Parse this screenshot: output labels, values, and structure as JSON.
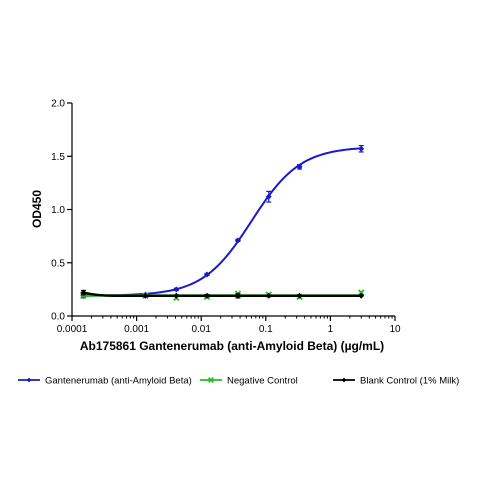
{
  "chart_data": {
    "type": "line",
    "title": "",
    "xlabel": "Ab175861 Gantenerumab (anti-Amyloid Beta) (µg/mL)",
    "ylabel": "OD450",
    "xscale": "log",
    "xlim": [
      0.0001,
      10
    ],
    "ylim": [
      0,
      2.0
    ],
    "x_ticks": [
      0.0001,
      0.001,
      0.01,
      0.1,
      1,
      10
    ],
    "x_tick_labels": [
      "0.0001",
      "0.001",
      "0.01",
      "0.1",
      "1",
      "10"
    ],
    "y_ticks": [
      0,
      0.5,
      1.0,
      1.5,
      2.0
    ],
    "y_tick_labels": [
      "0.0",
      "0.5",
      "1.0",
      "1.5",
      "2.0"
    ],
    "grid": false,
    "legend_position": "bottom",
    "x": [
      0.00015,
      0.00137,
      0.00412,
      0.0123,
      0.037,
      0.111,
      0.333,
      3.0
    ],
    "series": [
      {
        "name": "Gantenerumab (anti-Amyloid Beta)",
        "color": "#1a1ac8",
        "marker": "diamond",
        "values": [
          0.19,
          0.2,
          0.25,
          0.39,
          0.71,
          1.12,
          1.4,
          1.57
        ],
        "errors": [
          0.02,
          0.01,
          0.01,
          0.01,
          0.01,
          0.05,
          0.02,
          0.03
        ],
        "fit": "4PL"
      },
      {
        "name": "Negative Control",
        "color": "#22bb22",
        "marker": "x",
        "values": [
          0.19,
          0.19,
          0.17,
          0.18,
          0.21,
          0.2,
          0.18,
          0.22
        ],
        "errors": [
          0,
          0,
          0,
          0,
          0,
          0,
          0,
          0
        ],
        "fit": "line"
      },
      {
        "name": "Blank Control (1% Milk)",
        "color": "#000000",
        "marker": "diamond",
        "values": [
          0.22,
          0.19,
          0.19,
          0.19,
          0.19,
          0.19,
          0.19,
          0.19
        ],
        "errors": [
          0.02,
          0,
          0,
          0.01,
          0.02,
          0,
          0,
          0
        ],
        "fit": "line"
      }
    ]
  }
}
